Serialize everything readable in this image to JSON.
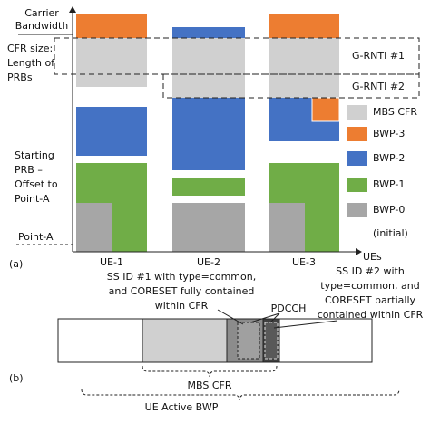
{
  "part_a": {
    "label": "(a)",
    "y_labels": {
      "carrier": [
        "Carrier",
        "Bandwidth"
      ],
      "cfr_size": [
        "CFR size:",
        "Length of",
        "PRBs"
      ],
      "starting": [
        "Starting",
        "PRB –",
        "Offset to",
        "Point-A"
      ],
      "point_a": "Point-A"
    },
    "x_axis_label": "UEs",
    "columns": [
      "UE-1",
      "UE-2",
      "UE-3"
    ],
    "groups": [
      "G-RNTI #1",
      "G-RNTI #2"
    ],
    "legend": [
      "MBS CFR",
      "BWP-3",
      "BWP-2",
      "BWP-1",
      "BWP-0",
      "(initial)"
    ]
  },
  "part_b": {
    "label": "(b)",
    "ss1": [
      "SS ID #1 with type=common,",
      "and CORESET fully contained",
      "within CFR"
    ],
    "ss2": [
      "SS ID #2 with",
      "type=common, and",
      "CORESET partially",
      "contained within CFR"
    ],
    "pdcch": "PDCCH",
    "mbs_cfr": "MBS CFR",
    "active_bwp": "UE Active BWP"
  }
}
